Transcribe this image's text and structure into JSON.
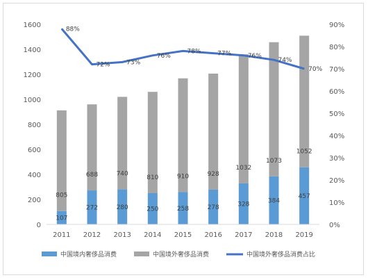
{
  "chart_data": {
    "type": "bar",
    "stacked": true,
    "categories": [
      "2011",
      "2012",
      "2013",
      "2014",
      "2015",
      "2016",
      "2017",
      "2018",
      "2019"
    ],
    "series": [
      {
        "name": "中国境内奢侈品消费",
        "kind": "bar",
        "axis": "left",
        "color": "#5b9bd5",
        "values": [
          107,
          272,
          280,
          250,
          258,
          278,
          328,
          384,
          457
        ]
      },
      {
        "name": "中国境外奢侈品消费",
        "kind": "bar",
        "axis": "left",
        "color": "#a5a5a5",
        "values": [
          805,
          688,
          740,
          810,
          910,
          928,
          1032,
          1073,
          1052
        ]
      },
      {
        "name": "中国境外奢侈品消费占比",
        "kind": "line",
        "axis": "right",
        "color": "#4472c4",
        "values": [
          88,
          72,
          73,
          76,
          78,
          77,
          76,
          74,
          70
        ],
        "labels": [
          "88%",
          "72%",
          "73%",
          "76%",
          "78%",
          "77%",
          "76%",
          "74%",
          "70%"
        ]
      }
    ],
    "left_axis": {
      "min": 0,
      "max": 1600,
      "step": 200,
      "ticks": [
        "0",
        "200",
        "400",
        "600",
        "800",
        "1000",
        "1200",
        "1400",
        "1600"
      ]
    },
    "right_axis": {
      "min": 0,
      "max": 90,
      "step": 10,
      "ticks": [
        "0%",
        "10%",
        "20%",
        "30%",
        "40%",
        "50%",
        "60%",
        "70%",
        "80%",
        "90%"
      ]
    },
    "grid": false,
    "legend_position": "bottom"
  }
}
